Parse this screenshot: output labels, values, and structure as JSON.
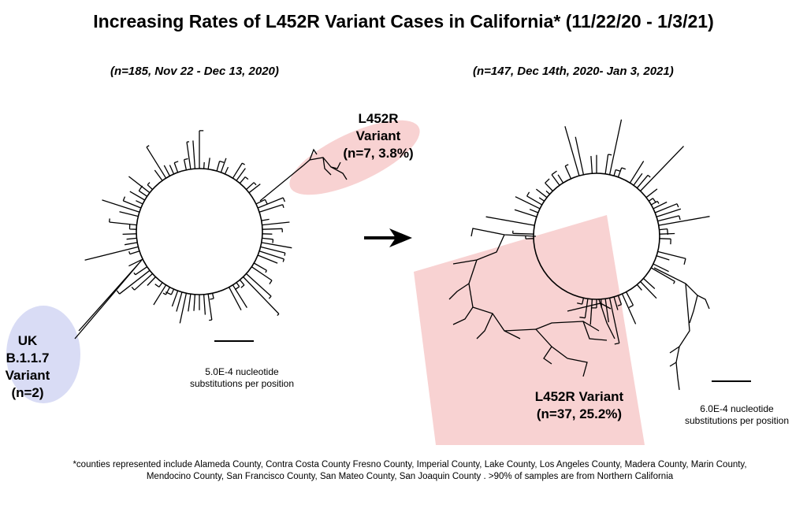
{
  "title": "Increasing Rates of L452R Variant Cases in California* (11/22/20 - 1/3/21)",
  "left_panel": {
    "subtitle": "(n=185, Nov 22 - Dec 13, 2020)",
    "l452r_label": [
      "L452R",
      "Variant",
      "(n=7, 3.8%)"
    ],
    "uk_label": [
      "UK",
      "B.1.1.7",
      "Variant",
      "(n=2)"
    ],
    "scale_label": [
      "5.0E-4 nucleotide",
      "substitutions per position"
    ],
    "highlight_colors": {
      "l452r": "#f8d2d2",
      "uk": "#d9dcf5"
    }
  },
  "right_panel": {
    "subtitle": "(n=147, Dec 14th, 2020- Jan 3, 2021)",
    "l452r_label": [
      "L452R Variant",
      "(n=37, 25.2%)"
    ],
    "scale_label": [
      "6.0E-4 nucleotide",
      "substitutions per position"
    ],
    "highlight_colors": {
      "l452r": "#f8d2d2"
    }
  },
  "footnote": "*counties represented include Alameda County, Contra Costa County Fresno County, Imperial County, Lake County, Los Angeles County, Madera County, Marin County, Mendocino County, San Francisco County, San Mateo County, San Joaquin County . >90% of samples are from Northern California"
}
